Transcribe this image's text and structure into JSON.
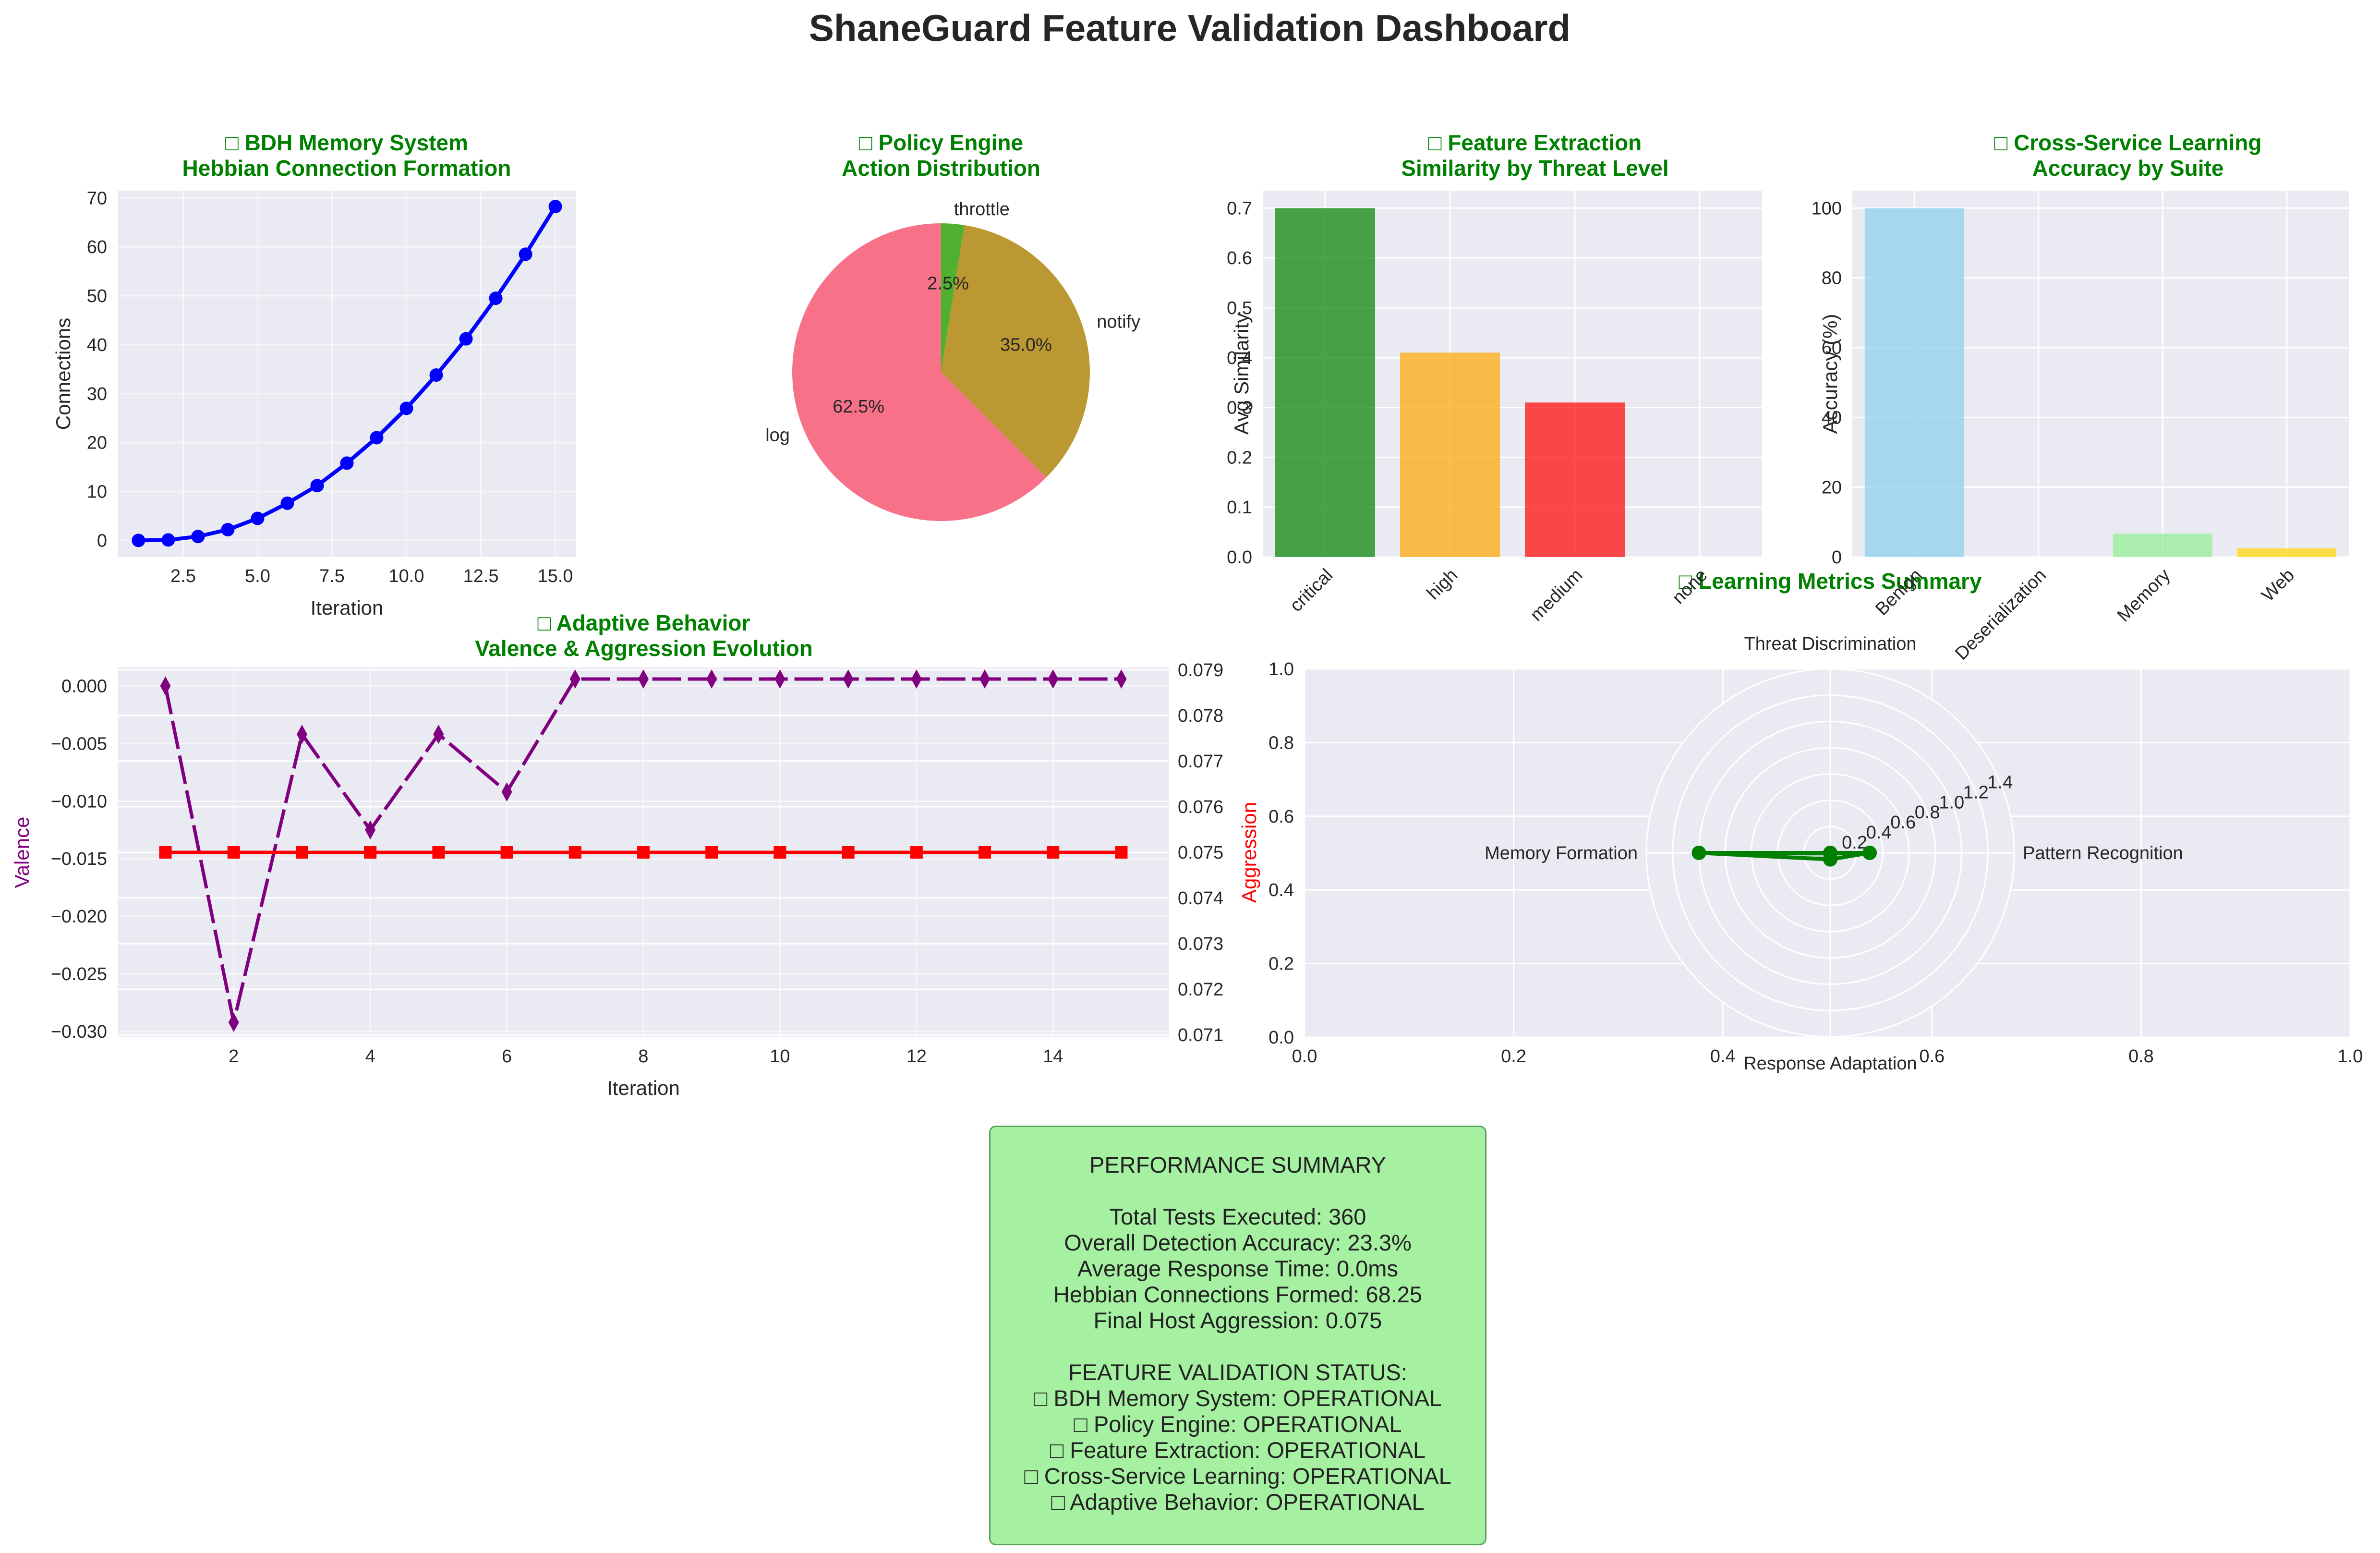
{
  "dashboard": {
    "title": "ShaneGuard Feature Validation Dashboard"
  },
  "charts_text": {
    "memory": {
      "title1": "□ BDH Memory System",
      "title2": "Hebbian Connection Formation"
    },
    "policy": {
      "title1": "□ Policy Engine",
      "title2": "Action Distribution"
    },
    "feature": {
      "title1": "□ Feature Extraction",
      "title2": "Similarity by Threat Level"
    },
    "cross": {
      "title1": "□ Cross-Service Learning",
      "title2": "Accuracy by Suite"
    },
    "adaptive": {
      "title1": "□ Adaptive Behavior",
      "title2": "Valence & Aggression Evolution"
    },
    "radar": {
      "title1": "□ Learning Metrics Summary"
    }
  },
  "summary": {
    "heading": "PERFORMANCE SUMMARY",
    "lines": [
      "Total Tests Executed: 360",
      "Overall Detection Accuracy: 23.3%",
      "Average Response Time: 0.0ms",
      "Hebbian Connections Formed: 68.25",
      "Final Host Aggression: 0.075"
    ],
    "status_heading": "FEATURE VALIDATION STATUS:",
    "status_lines": [
      "□ BDH Memory System: OPERATIONAL",
      "□ Policy Engine: OPERATIONAL",
      "□ Feature Extraction: OPERATIONAL",
      "□ Cross-Service Learning: OPERATIONAL",
      "□ Adaptive Behavior: OPERATIONAL"
    ]
  },
  "colors": {
    "title_green": "#008000",
    "panel_bg": "#eaeaf2",
    "grid": "#ffffff",
    "summary_bg": "#a6f0a2"
  },
  "chart_data": [
    {
      "id": "memory",
      "type": "line",
      "xlabel": "Iteration",
      "ylabel": "Connections",
      "xlim": [
        0.3,
        15.7
      ],
      "ylim": [
        -3.4,
        71.5
      ],
      "xticks": [
        2.5,
        5.0,
        7.5,
        10.0,
        12.5,
        15.0
      ],
      "xtick_labels": [
        "2.5",
        "5.0",
        "7.5",
        "10.0",
        "12.5",
        "15.0"
      ],
      "yticks": [
        0,
        10,
        20,
        30,
        40,
        50,
        60,
        70
      ],
      "x": [
        1,
        2,
        3,
        4,
        5,
        6,
        7,
        8,
        9,
        10,
        11,
        12,
        13,
        14,
        15
      ],
      "y": [
        0,
        0.1,
        0.8,
        2.2,
        4.5,
        7.6,
        11.2,
        15.8,
        21.0,
        27.0,
        33.8,
        41.2,
        49.5,
        58.5,
        68.25
      ],
      "color": "#0000ff"
    },
    {
      "id": "policy",
      "type": "pie",
      "labels": [
        "log",
        "notify",
        "throttle"
      ],
      "values": [
        62.5,
        35.0,
        2.5
      ],
      "autopct": [
        "62.5%",
        "35.0%",
        "2.5%"
      ],
      "colors": [
        "#f77189",
        "#bb9832",
        "#50b131"
      ]
    },
    {
      "id": "feature",
      "type": "bar",
      "ylabel": "Avg Similarity",
      "categories": [
        "critical",
        "high",
        "medium",
        "none"
      ],
      "values": [
        0.7,
        0.41,
        0.31,
        0.0
      ],
      "colors": [
        "#008000",
        "#ffa500",
        "#ff0000",
        "#808080"
      ],
      "ylim": [
        0,
        0.735
      ],
      "yticks": [
        0.0,
        0.1,
        0.2,
        0.3,
        0.4,
        0.5,
        0.6,
        0.7
      ]
    },
    {
      "id": "cross",
      "type": "bar",
      "ylabel": "Accuracy (%)",
      "categories": [
        "Benign",
        "Deserialization",
        "Memory",
        "Web"
      ],
      "values": [
        100.0,
        0.0,
        6.7,
        2.5
      ],
      "colors": [
        "#87ceeb",
        "#f0e68c",
        "#90ee90",
        "#ffd700"
      ],
      "ylim": [
        0,
        105
      ],
      "yticks": [
        0,
        20,
        40,
        60,
        80,
        100
      ]
    },
    {
      "id": "adaptive",
      "type": "line",
      "xlabel": "Iteration",
      "ylabel_left": "Valence",
      "ylabel_right": "Aggression",
      "xlim": [
        0.3,
        15.7
      ],
      "xticks": [
        2,
        4,
        6,
        8,
        10,
        12,
        14
      ],
      "ylim_left": [
        -0.0305,
        0.0016
      ],
      "yticks_left": [
        0.0,
        -0.005,
        -0.01,
        -0.015,
        -0.02,
        -0.025,
        -0.03
      ],
      "ytick_labels_left": [
        "0.000",
        "−0.005",
        "−0.010",
        "−0.015",
        "−0.020",
        "−0.025",
        "−0.030"
      ],
      "ylim_right": [
        0.07095,
        0.07905
      ],
      "yticks_right": [
        0.071,
        0.072,
        0.073,
        0.074,
        0.075,
        0.076,
        0.077,
        0.078,
        0.079
      ],
      "series": [
        {
          "name": "Valence",
          "axis": "left",
          "color": "#800080",
          "marker": "diamond",
          "x": [
            1,
            2,
            3,
            4,
            5,
            6,
            7,
            8,
            9,
            10,
            11,
            12,
            13,
            14,
            15
          ],
          "y": [
            0.0,
            -0.0292,
            -0.0042,
            -0.0125,
            -0.0042,
            -0.0092,
            0.0006,
            0.0006,
            0.0006,
            0.0006,
            0.0006,
            0.0006,
            0.0006,
            0.0006,
            0.0006
          ]
        },
        {
          "name": "Aggression",
          "axis": "right",
          "color": "#ff0000",
          "marker": "square",
          "x": [
            1,
            2,
            3,
            4,
            5,
            6,
            7,
            8,
            9,
            10,
            11,
            12,
            13,
            14,
            15
          ],
          "y": [
            0.075,
            0.075,
            0.075,
            0.075,
            0.075,
            0.075,
            0.075,
            0.075,
            0.075,
            0.075,
            0.075,
            0.075,
            0.075,
            0.075,
            0.075
          ]
        }
      ]
    },
    {
      "id": "radar",
      "type": "radar",
      "axes": [
        "Pattern Recognition",
        "Threat Discrimination",
        "Memory Formation",
        "Response Adaptation"
      ],
      "values": [
        0.3,
        0.0,
        1.0,
        0.05
      ],
      "rmax": 1.4,
      "rticks": [
        0.2,
        0.4,
        0.6,
        0.8,
        1.0,
        1.2,
        1.4
      ],
      "rtick_labels": [
        "0.2",
        "0.4",
        "0.6",
        "0.8",
        "1.0",
        "1.2",
        "1.4"
      ],
      "color": "#008000",
      "outer_xticks": [
        0.0,
        0.2,
        0.4,
        0.6,
        0.8,
        1.0
      ],
      "outer_yticks": [
        0.0,
        0.2,
        0.4,
        0.6,
        0.8,
        1.0
      ],
      "outer_xtick_labels": [
        "0.0",
        "0.2",
        "0.4",
        "0.6",
        "0.8",
        "1.0"
      ],
      "outer_ytick_labels": [
        "0.0",
        "0.2",
        "0.4",
        "0.6",
        "0.8",
        "1.0"
      ]
    }
  ]
}
